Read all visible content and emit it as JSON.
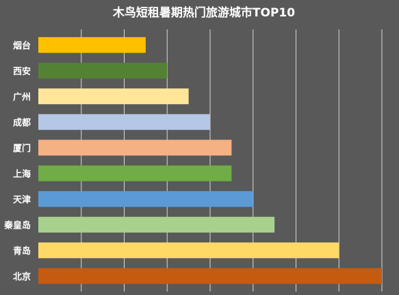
{
  "chart_data": {
    "type": "bar",
    "orientation": "horizontal",
    "title": "木鸟短租暑期热门旅游城市TOP10",
    "xlabel": "",
    "ylabel": "",
    "xlim": [
      0,
      8
    ],
    "grid": true,
    "legend": "none",
    "categories": [
      "烟台",
      "西安",
      "广州",
      "成都",
      "厦门",
      "上海",
      "天津",
      "秦皇岛",
      "青岛",
      "北京"
    ],
    "values": [
      2.5,
      3.0,
      3.5,
      4.0,
      4.5,
      4.5,
      5.0,
      5.5,
      7.0,
      8.0
    ],
    "colors": [
      "#FFC000",
      "#548235",
      "#FFE699",
      "#B4C7E7",
      "#F4B183",
      "#70AD47",
      "#5B9BD5",
      "#A9D18E",
      "#FFD966",
      "#C55A11"
    ]
  }
}
